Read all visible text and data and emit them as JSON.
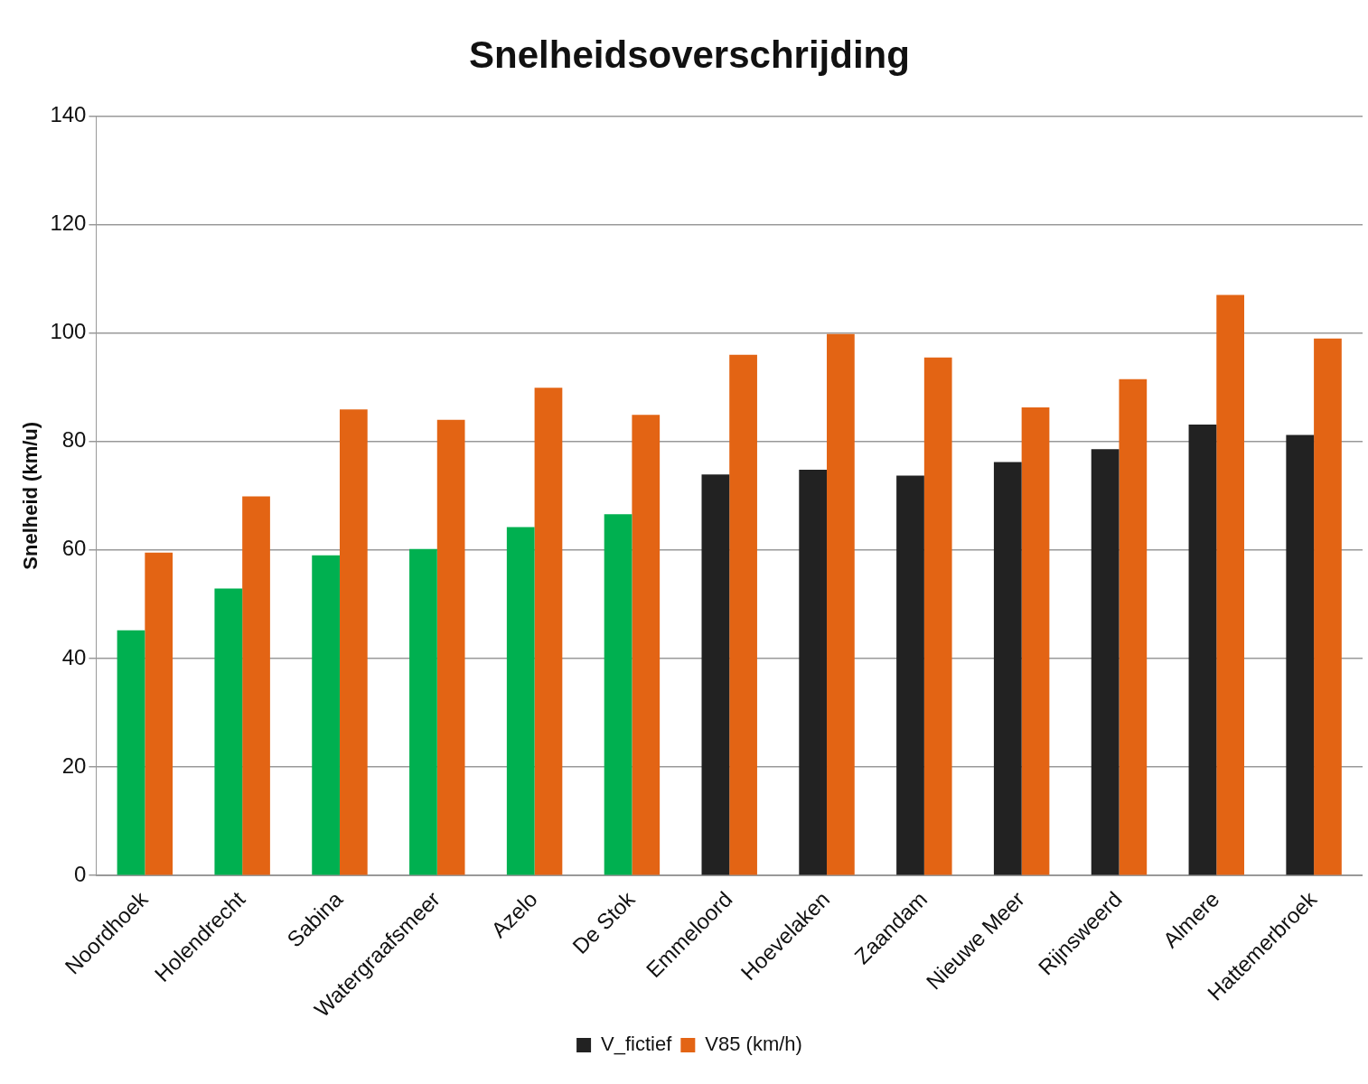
{
  "chart_data": {
    "type": "bar",
    "title": "Snelheidsoverschrijding",
    "ylabel": "Snelheid (km/u)",
    "categories": [
      "Noordhoek",
      "Holendrecht",
      "Sabina",
      "Watergraafsmeer",
      "Azelo",
      "De Stok",
      "Emmeloord",
      "Hoevelaken",
      "Zaandam",
      "Nieuwe Meer",
      "Rijnsweerd",
      "Almere",
      "Hattemerbroek"
    ],
    "series": [
      {
        "name": "V_fictief",
        "color": "#222222",
        "colors": [
          "#00b050",
          "#00b050",
          "#00b050",
          "#00b050",
          "#00b050",
          "#00b050",
          "#222222",
          "#222222",
          "#222222",
          "#222222",
          "#222222",
          "#222222",
          "#222222"
        ],
        "values": [
          45.2,
          52.9,
          59,
          60.2,
          64.2,
          66.6,
          73.9,
          74.8,
          73.7,
          76.2,
          78.6,
          83.1,
          81.2
        ]
      },
      {
        "name": "V85 (km/h)",
        "color": "#e36414",
        "values": [
          59.5,
          69.9,
          85.9,
          84,
          89.9,
          84.9,
          96,
          99.8,
          95.5,
          86.3,
          91.5,
          107,
          99
        ]
      }
    ],
    "ylim": [
      0,
      140
    ],
    "yticks": [
      0,
      20,
      40,
      60,
      80,
      100,
      120,
      140
    ],
    "grid": "y",
    "legend": "bottom"
  }
}
